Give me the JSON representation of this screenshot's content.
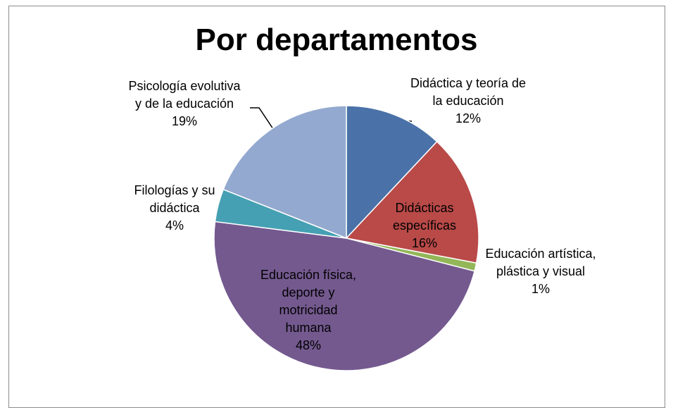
{
  "chart_data": {
    "type": "pie",
    "title": "Por departamentos",
    "categories": [
      "Didáctica y teoría de la educación",
      "Didácticas específicas",
      "Educación artística, plástica y visual",
      "Educación física, deporte y motricidad humana",
      "Filologías y su didáctica",
      "Psicología evolutiva y de la educación"
    ],
    "values": [
      12,
      16,
      1,
      48,
      4,
      19
    ],
    "value_labels": [
      "12%",
      "16%",
      "1%",
      "48%",
      "4%",
      "19%"
    ],
    "colors": [
      "#4a72a8",
      "#b94a48",
      "#93b758",
      "#74598f",
      "#46a0b3",
      "#93a9cf"
    ]
  }
}
